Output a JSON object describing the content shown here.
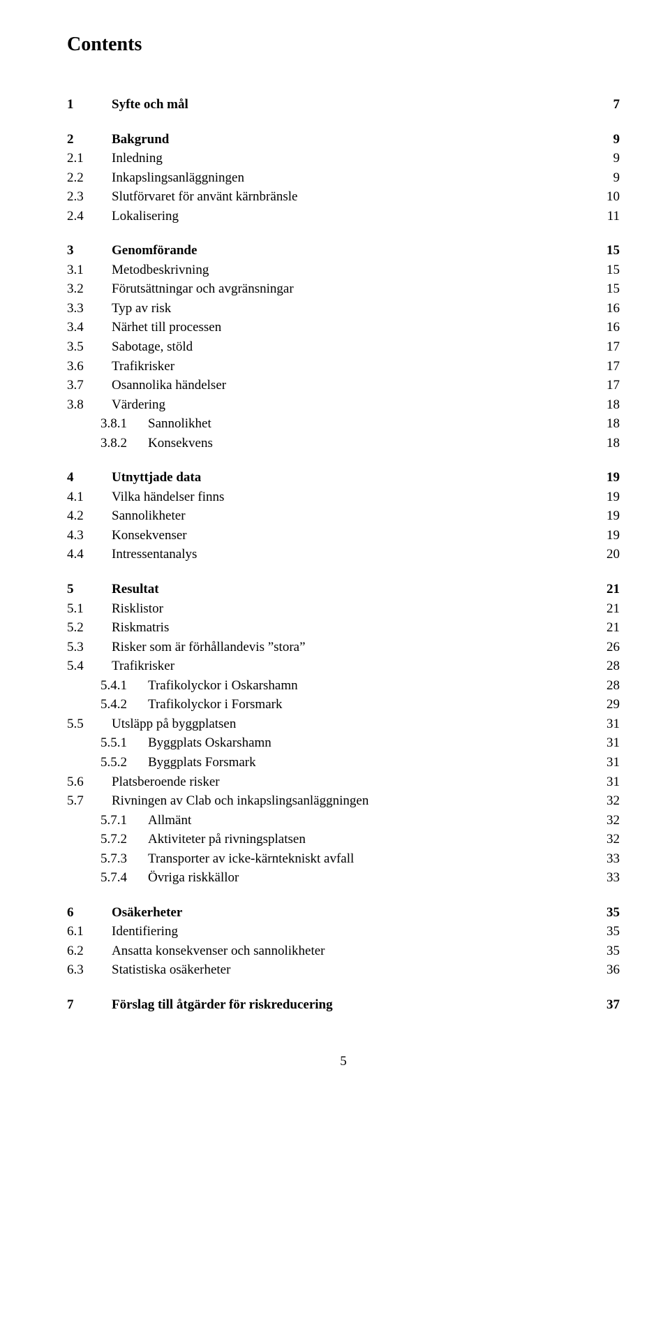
{
  "heading": "Contents",
  "page_number": "5",
  "entries": [
    {
      "num": "1",
      "title": "Syfte och mål",
      "page": "7",
      "bold": true,
      "indent": 0,
      "gap": false
    },
    {
      "num": "2",
      "title": "Bakgrund",
      "page": "9",
      "bold": true,
      "indent": 0,
      "gap": true
    },
    {
      "num": "2.1",
      "title": "Inledning",
      "page": "9",
      "bold": false,
      "indent": 0,
      "gap": false
    },
    {
      "num": "2.2",
      "title": "Inkapslingsanläggningen",
      "page": "9",
      "bold": false,
      "indent": 0,
      "gap": false
    },
    {
      "num": "2.3",
      "title": "Slutförvaret för använt kärnbränsle",
      "page": "10",
      "bold": false,
      "indent": 0,
      "gap": false
    },
    {
      "num": "2.4",
      "title": "Lokalisering",
      "page": "11",
      "bold": false,
      "indent": 0,
      "gap": false
    },
    {
      "num": "3",
      "title": "Genomförande",
      "page": "15",
      "bold": true,
      "indent": 0,
      "gap": true
    },
    {
      "num": "3.1",
      "title": "Metodbeskrivning",
      "page": "15",
      "bold": false,
      "indent": 0,
      "gap": false
    },
    {
      "num": "3.2",
      "title": "Förutsättningar och avgränsningar",
      "page": "15",
      "bold": false,
      "indent": 0,
      "gap": false
    },
    {
      "num": "3.3",
      "title": "Typ av risk",
      "page": "16",
      "bold": false,
      "indent": 0,
      "gap": false
    },
    {
      "num": "3.4",
      "title": "Närhet till processen",
      "page": "16",
      "bold": false,
      "indent": 0,
      "gap": false
    },
    {
      "num": "3.5",
      "title": "Sabotage, stöld",
      "page": "17",
      "bold": false,
      "indent": 0,
      "gap": false
    },
    {
      "num": "3.6",
      "title": "Trafikrisker",
      "page": "17",
      "bold": false,
      "indent": 0,
      "gap": false
    },
    {
      "num": "3.7",
      "title": "Osannolika händelser",
      "page": "17",
      "bold": false,
      "indent": 0,
      "gap": false
    },
    {
      "num": "3.8",
      "title": "Värdering",
      "page": "18",
      "bold": false,
      "indent": 0,
      "gap": false
    },
    {
      "num": "3.8.1",
      "title": "Sannolikhet",
      "page": "18",
      "bold": false,
      "indent": 1,
      "gap": false
    },
    {
      "num": "3.8.2",
      "title": "Konsekvens",
      "page": "18",
      "bold": false,
      "indent": 1,
      "gap": false
    },
    {
      "num": "4",
      "title": "Utnyttjade data",
      "page": "19",
      "bold": true,
      "indent": 0,
      "gap": true
    },
    {
      "num": "4.1",
      "title": "Vilka händelser finns",
      "page": "19",
      "bold": false,
      "indent": 0,
      "gap": false
    },
    {
      "num": "4.2",
      "title": "Sannolikheter",
      "page": "19",
      "bold": false,
      "indent": 0,
      "gap": false
    },
    {
      "num": "4.3",
      "title": "Konsekvenser",
      "page": "19",
      "bold": false,
      "indent": 0,
      "gap": false
    },
    {
      "num": "4.4",
      "title": "Intressentanalys",
      "page": "20",
      "bold": false,
      "indent": 0,
      "gap": false
    },
    {
      "num": "5",
      "title": "Resultat",
      "page": "21",
      "bold": true,
      "indent": 0,
      "gap": true
    },
    {
      "num": "5.1",
      "title": "Risklistor",
      "page": "21",
      "bold": false,
      "indent": 0,
      "gap": false
    },
    {
      "num": "5.2",
      "title": "Riskmatris",
      "page": "21",
      "bold": false,
      "indent": 0,
      "gap": false
    },
    {
      "num": "5.3",
      "title": "Risker som är förhållandevis ”stora”",
      "page": "26",
      "bold": false,
      "indent": 0,
      "gap": false
    },
    {
      "num": "5.4",
      "title": "Trafikrisker",
      "page": "28",
      "bold": false,
      "indent": 0,
      "gap": false
    },
    {
      "num": "5.4.1",
      "title": "Trafikolyckor i Oskarshamn",
      "page": "28",
      "bold": false,
      "indent": 1,
      "gap": false
    },
    {
      "num": "5.4.2",
      "title": "Trafikolyckor i Forsmark",
      "page": "29",
      "bold": false,
      "indent": 1,
      "gap": false
    },
    {
      "num": "5.5",
      "title": "Utsläpp på byggplatsen",
      "page": "31",
      "bold": false,
      "indent": 0,
      "gap": false
    },
    {
      "num": "5.5.1",
      "title": "Byggplats Oskarshamn",
      "page": "31",
      "bold": false,
      "indent": 1,
      "gap": false
    },
    {
      "num": "5.5.2",
      "title": "Byggplats Forsmark",
      "page": "31",
      "bold": false,
      "indent": 1,
      "gap": false
    },
    {
      "num": "5.6",
      "title": "Platsberoende risker",
      "page": "31",
      "bold": false,
      "indent": 0,
      "gap": false
    },
    {
      "num": "5.7",
      "title": "Rivningen av Clab och inkapslingsanläggningen",
      "page": "32",
      "bold": false,
      "indent": 0,
      "gap": false
    },
    {
      "num": "5.7.1",
      "title": "Allmänt",
      "page": "32",
      "bold": false,
      "indent": 1,
      "gap": false
    },
    {
      "num": "5.7.2",
      "title": "Aktiviteter på rivningsplatsen",
      "page": "32",
      "bold": false,
      "indent": 1,
      "gap": false
    },
    {
      "num": "5.7.3",
      "title": "Transporter av icke-kärntekniskt avfall",
      "page": "33",
      "bold": false,
      "indent": 1,
      "gap": false
    },
    {
      "num": "5.7.4",
      "title": "Övriga riskkällor",
      "page": "33",
      "bold": false,
      "indent": 1,
      "gap": false
    },
    {
      "num": "6",
      "title": "Osäkerheter",
      "page": "35",
      "bold": true,
      "indent": 0,
      "gap": true
    },
    {
      "num": "6.1",
      "title": "Identifiering",
      "page": "35",
      "bold": false,
      "indent": 0,
      "gap": false
    },
    {
      "num": "6.2",
      "title": "Ansatta konsekvenser och sannolikheter",
      "page": "35",
      "bold": false,
      "indent": 0,
      "gap": false
    },
    {
      "num": "6.3",
      "title": "Statistiska osäkerheter",
      "page": "36",
      "bold": false,
      "indent": 0,
      "gap": false
    },
    {
      "num": "7",
      "title": "Förslag till åtgärder för riskreducering",
      "page": "37",
      "bold": true,
      "indent": 0,
      "gap": true
    }
  ]
}
